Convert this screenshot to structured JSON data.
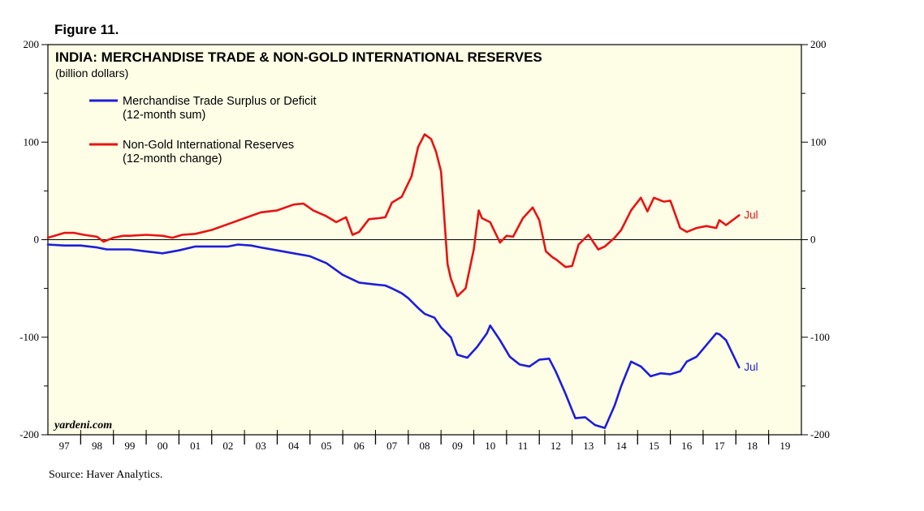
{
  "figure_label": "Figure 11.",
  "source": "Source: Haver Analytics.",
  "watermark": "yardeni.com",
  "colors": {
    "background": "#fefee6",
    "trade": "#1d1ddb",
    "reserves": "#e81313",
    "axis": "#000000"
  },
  "chart_data": {
    "type": "line",
    "title": "INDIA: MERCHANDISE TRADE & NON-GOLD INTERNATIONAL RESERVES",
    "subtitle": "(billion dollars)",
    "xlabel": "",
    "ylabel": "",
    "xlim": [
      1996.5,
      2019.5
    ],
    "ylim": [
      -200,
      200
    ],
    "yticks": [
      -200,
      -100,
      0,
      100,
      200
    ],
    "ytick_labels": [
      "-200",
      "-100",
      "0",
      "100",
      "200"
    ],
    "xtick_labels": [
      "97",
      "98",
      "99",
      "00",
      "01",
      "02",
      "03",
      "04",
      "05",
      "06",
      "07",
      "08",
      "09",
      "10",
      "11",
      "12",
      "13",
      "14",
      "15",
      "16",
      "17",
      "18",
      "19"
    ],
    "legend_position": "top-left",
    "series": [
      {
        "name": "Merchandise Trade Surplus or Deficit",
        "name_note": "(12-month sum)",
        "end_label": "Jul",
        "color_key": "trade",
        "x": [
          1996.5,
          1997.0,
          1997.5,
          1998.0,
          1998.3,
          1998.7,
          1999.0,
          1999.5,
          2000.0,
          2000.5,
          2001.0,
          2001.5,
          2002.0,
          2002.3,
          2002.7,
          2003.0,
          2003.5,
          2004.0,
          2004.5,
          2005.0,
          2005.5,
          2006.0,
          2006.5,
          2006.8,
          2007.0,
          2007.3,
          2007.5,
          2007.8,
          2008.0,
          2008.3,
          2008.5,
          2008.8,
          2009.0,
          2009.3,
          2009.6,
          2009.9,
          2010.0,
          2010.3,
          2010.6,
          2010.9,
          2011.2,
          2011.5,
          2011.8,
          2012.0,
          2012.3,
          2012.6,
          2012.9,
          2013.2,
          2013.5,
          2013.8,
          2014.0,
          2014.3,
          2014.6,
          2014.9,
          2015.2,
          2015.5,
          2015.8,
          2016.0,
          2016.3,
          2016.6,
          2016.9,
          2017.0,
          2017.2,
          2017.6
        ],
        "y": [
          -5,
          -6,
          -6,
          -8,
          -10,
          -10,
          -10,
          -12,
          -14,
          -11,
          -7,
          -7,
          -7,
          -5,
          -6,
          -8,
          -11,
          -14,
          -17,
          -24,
          -36,
          -44,
          -46,
          -47,
          -50,
          -55,
          -60,
          -70,
          -76,
          -80,
          -90,
          -100,
          -118,
          -121,
          -110,
          -96,
          -88,
          -103,
          -120,
          -128,
          -130,
          -123,
          -122,
          -135,
          -158,
          -183,
          -182,
          -190,
          -193,
          -170,
          -150,
          -125,
          -130,
          -140,
          -137,
          -138,
          -135,
          -125,
          -120,
          -108,
          -96,
          -97,
          -103,
          -131
        ]
      },
      {
        "name": "Non-Gold International Reserves",
        "name_note": "(12-month change)",
        "end_label": "Jul",
        "color_key": "reserves",
        "x": [
          1996.5,
          1997.0,
          1997.3,
          1997.6,
          1998.0,
          1998.2,
          1998.5,
          1998.8,
          1999.0,
          1999.5,
          2000.0,
          2000.3,
          2000.6,
          2001.0,
          2001.5,
          2002.0,
          2002.5,
          2003.0,
          2003.5,
          2004.0,
          2004.3,
          2004.6,
          2005.0,
          2005.3,
          2005.6,
          2005.8,
          2006.0,
          2006.3,
          2006.6,
          2006.8,
          2007.0,
          2007.3,
          2007.6,
          2007.8,
          2008.0,
          2008.2,
          2008.35,
          2008.5,
          2008.7,
          2008.8,
          2009.0,
          2009.25,
          2009.5,
          2009.65,
          2009.75,
          2010.0,
          2010.3,
          2010.5,
          2010.7,
          2011.0,
          2011.3,
          2011.5,
          2011.7,
          2011.9,
          2012.0,
          2012.3,
          2012.5,
          2012.7,
          2013.0,
          2013.3,
          2013.5,
          2013.8,
          2014.0,
          2014.3,
          2014.6,
          2014.8,
          2015.0,
          2015.3,
          2015.5,
          2015.8,
          2016.0,
          2016.3,
          2016.6,
          2016.9,
          2017.0,
          2017.2,
          2017.6
        ],
        "y": [
          2,
          7,
          7,
          5,
          3,
          -2,
          2,
          4,
          4,
          5,
          4,
          2,
          5,
          6,
          10,
          16,
          22,
          28,
          30,
          36,
          37,
          30,
          24,
          18,
          23,
          5,
          8,
          21,
          22,
          23,
          38,
          44,
          65,
          95,
          108,
          103,
          90,
          70,
          -25,
          -40,
          -58,
          -50,
          -10,
          30,
          22,
          18,
          -3,
          4,
          3,
          22,
          33,
          20,
          -12,
          -18,
          -20,
          -28,
          -27,
          -5,
          5,
          -10,
          -7,
          2,
          10,
          30,
          43,
          29,
          43,
          39,
          40,
          12,
          8,
          12,
          14,
          12,
          20,
          15,
          25
        ]
      }
    ]
  }
}
